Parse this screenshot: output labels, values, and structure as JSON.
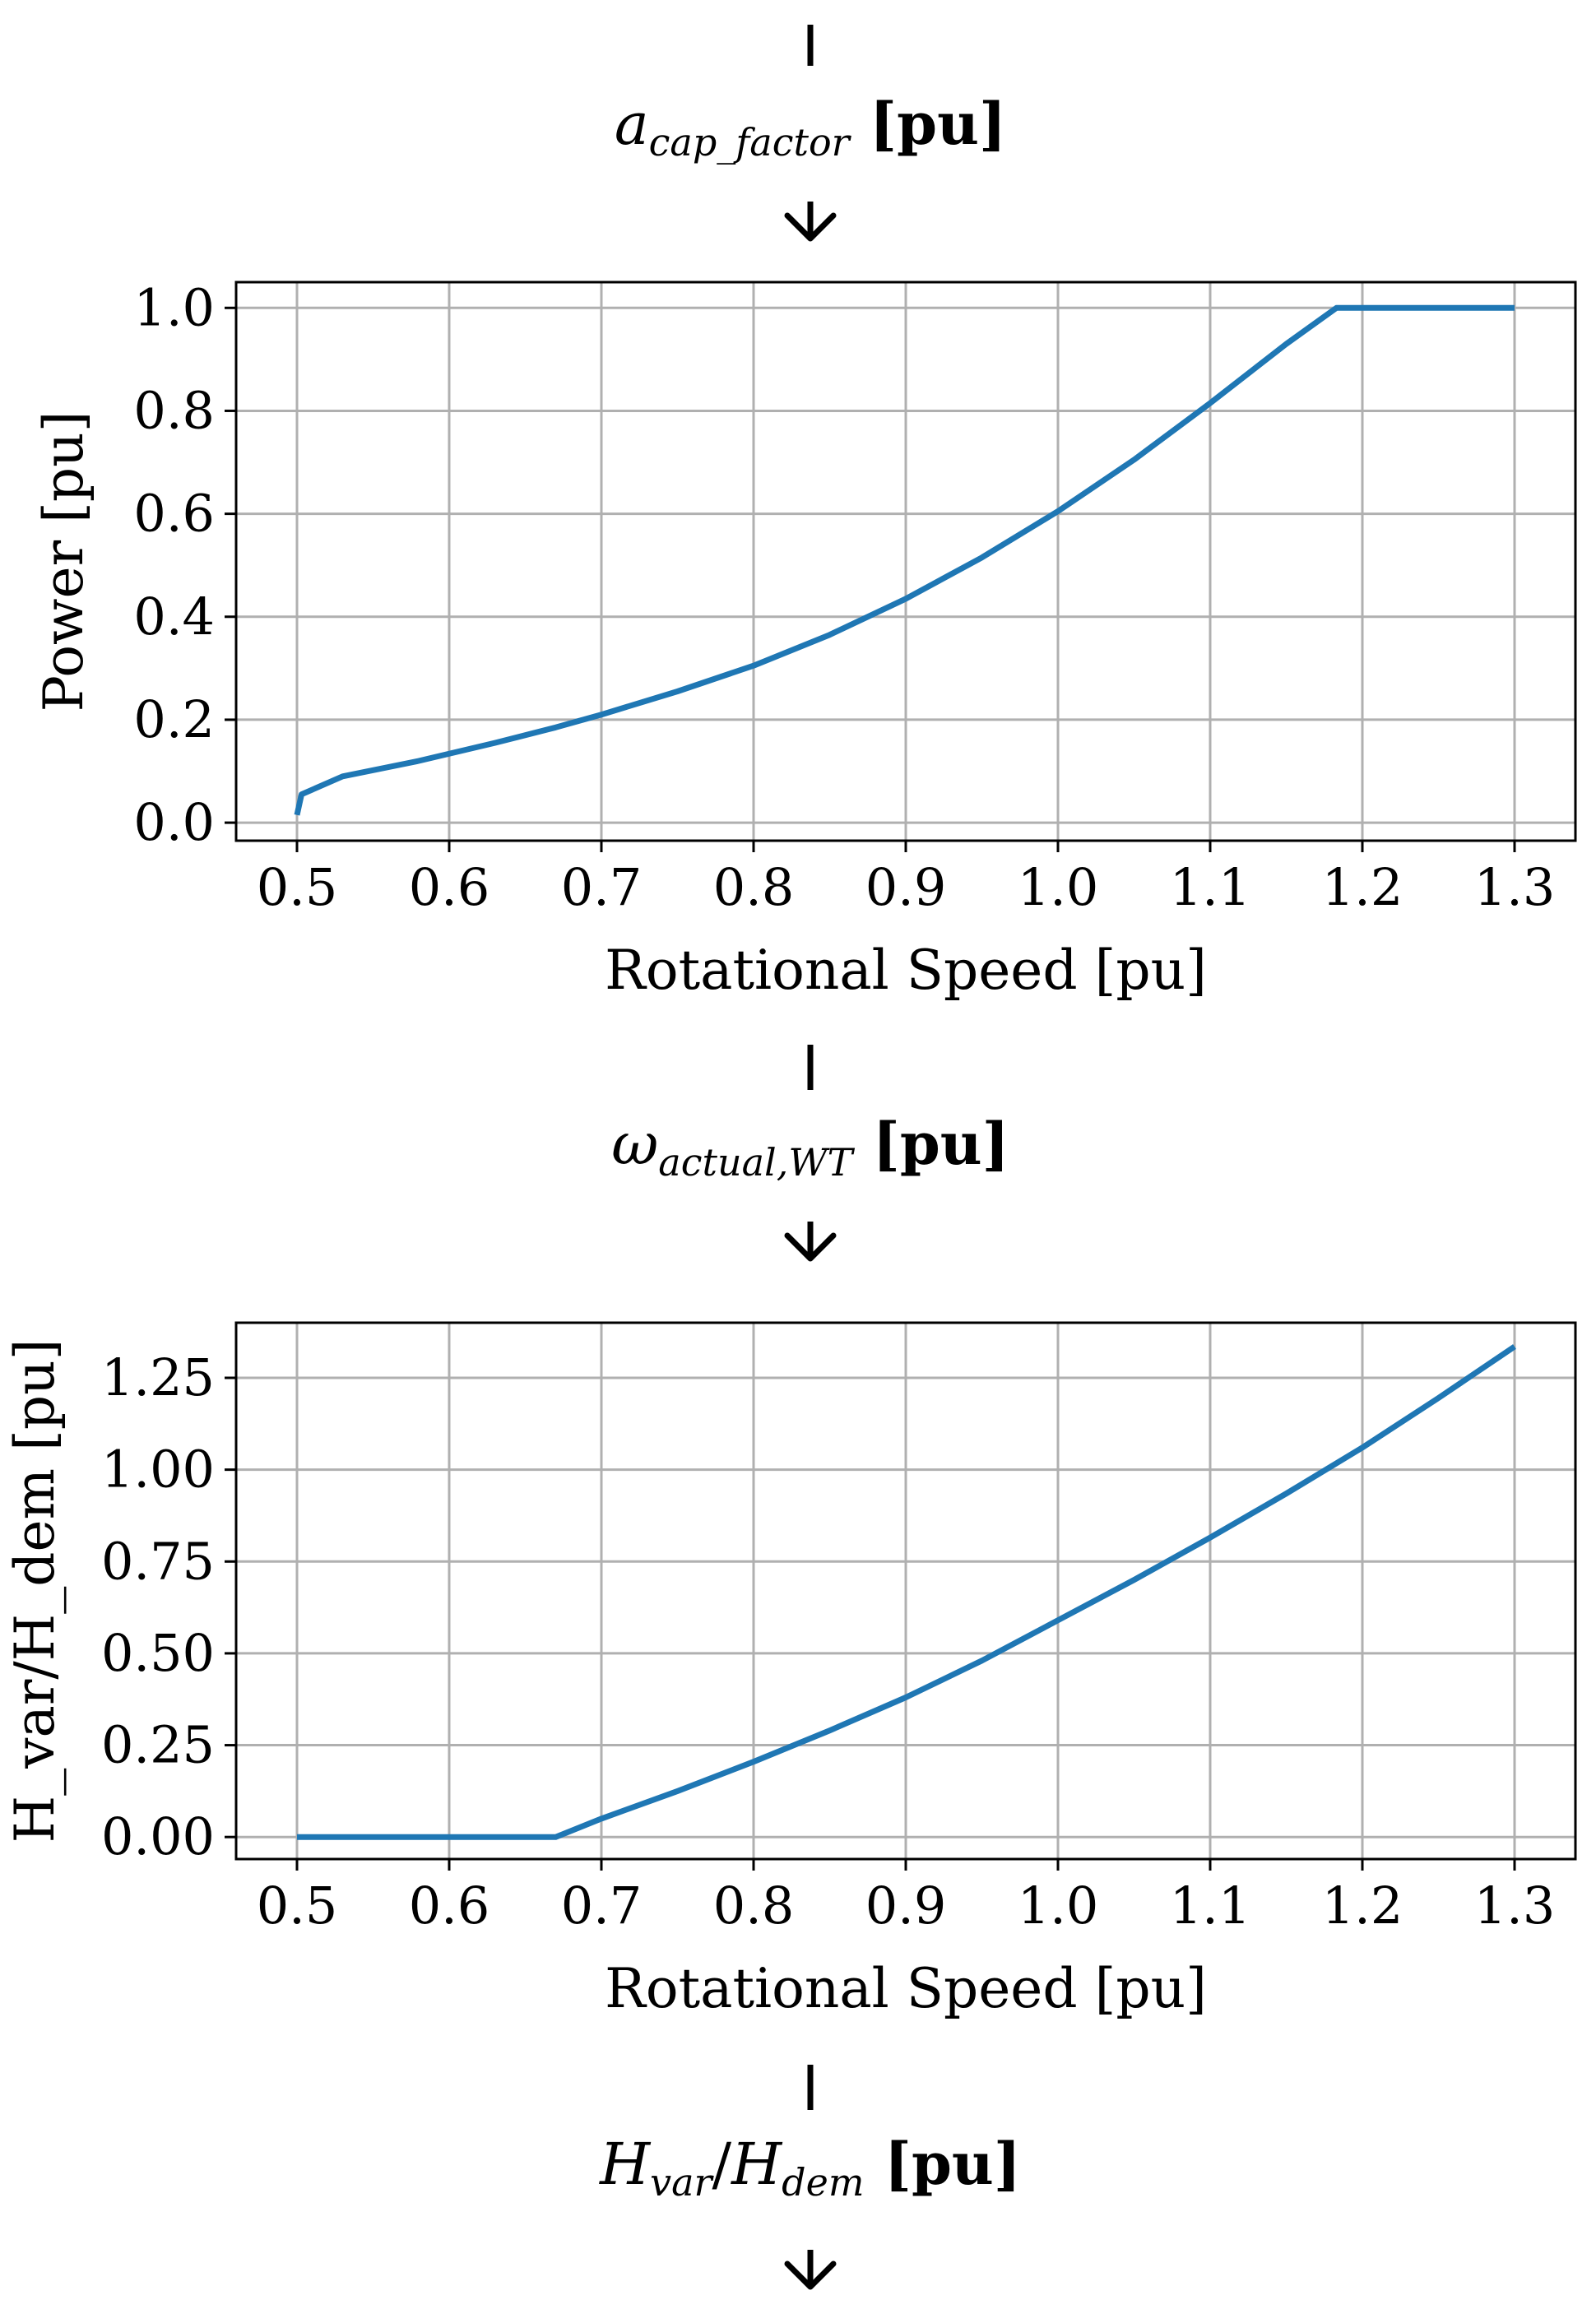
{
  "flow": {
    "signals": [
      {
        "base": "a",
        "sub": "cap_factor",
        "unit": "[pu]"
      },
      {
        "base": "ω",
        "sub": "actual,WT",
        "unit": "[pu]"
      },
      {
        "base": "H",
        "sub": "var",
        "mid": "/",
        "base2": "H",
        "sub2": "dem",
        "unit": "[pu]"
      }
    ]
  },
  "colors": {
    "line": "#1f77b4",
    "grid": "#b0b0b0",
    "axis": "#000000"
  },
  "chart_data": [
    {
      "type": "line",
      "xlabel": "Rotational Speed [pu]",
      "ylabel": "Power [pu]",
      "xlim": [
        0.46,
        1.34
      ],
      "ylim": [
        -0.035,
        1.05
      ],
      "xticks": [
        0.5,
        0.6,
        0.7,
        0.8,
        0.9,
        1.0,
        1.1,
        1.2,
        1.3
      ],
      "xtick_labels": [
        "0.5",
        "0.6",
        "0.7",
        "0.8",
        "0.9",
        "1.0",
        "1.1",
        "1.2",
        "1.3"
      ],
      "yticks": [
        0.0,
        0.2,
        0.4,
        0.6,
        0.8,
        1.0
      ],
      "ytick_labels": [
        "0.0",
        "0.2",
        "0.4",
        "0.6",
        "0.8",
        "1.0"
      ],
      "grid": true,
      "series": [
        {
          "x": [
            0.5,
            0.503,
            0.53,
            0.58,
            0.63,
            0.67,
            0.7,
            0.75,
            0.8,
            0.85,
            0.9,
            0.95,
            1.0,
            1.05,
            1.1,
            1.15,
            1.183,
            1.3
          ],
          "y": [
            0.015,
            0.055,
            0.09,
            0.12,
            0.155,
            0.185,
            0.21,
            0.255,
            0.305,
            0.365,
            0.435,
            0.515,
            0.605,
            0.705,
            0.815,
            0.93,
            1.0,
            1.0
          ]
        }
      ]
    },
    {
      "type": "line",
      "xlabel": "Rotational Speed [pu]",
      "ylabel": "H_var/H_dem [pu]",
      "xlim": [
        0.46,
        1.34
      ],
      "ylim": [
        -0.06,
        1.4
      ],
      "xticks": [
        0.5,
        0.6,
        0.7,
        0.8,
        0.9,
        1.0,
        1.1,
        1.2,
        1.3
      ],
      "xtick_labels": [
        "0.5",
        "0.6",
        "0.7",
        "0.8",
        "0.9",
        "1.0",
        "1.1",
        "1.2",
        "1.3"
      ],
      "yticks": [
        0.0,
        0.25,
        0.5,
        0.75,
        1.0,
        1.25
      ],
      "ytick_labels": [
        "0.00",
        "0.25",
        "0.50",
        "0.75",
        "1.00",
        "1.25"
      ],
      "grid": true,
      "series": [
        {
          "x": [
            0.5,
            0.67,
            0.7,
            0.75,
            0.8,
            0.85,
            0.9,
            0.95,
            1.0,
            1.05,
            1.1,
            1.15,
            1.2,
            1.25,
            1.3
          ],
          "y": [
            0.0,
            0.0,
            0.05,
            0.125,
            0.205,
            0.29,
            0.38,
            0.48,
            0.59,
            0.7,
            0.815,
            0.935,
            1.06,
            1.195,
            1.335
          ]
        }
      ]
    }
  ]
}
